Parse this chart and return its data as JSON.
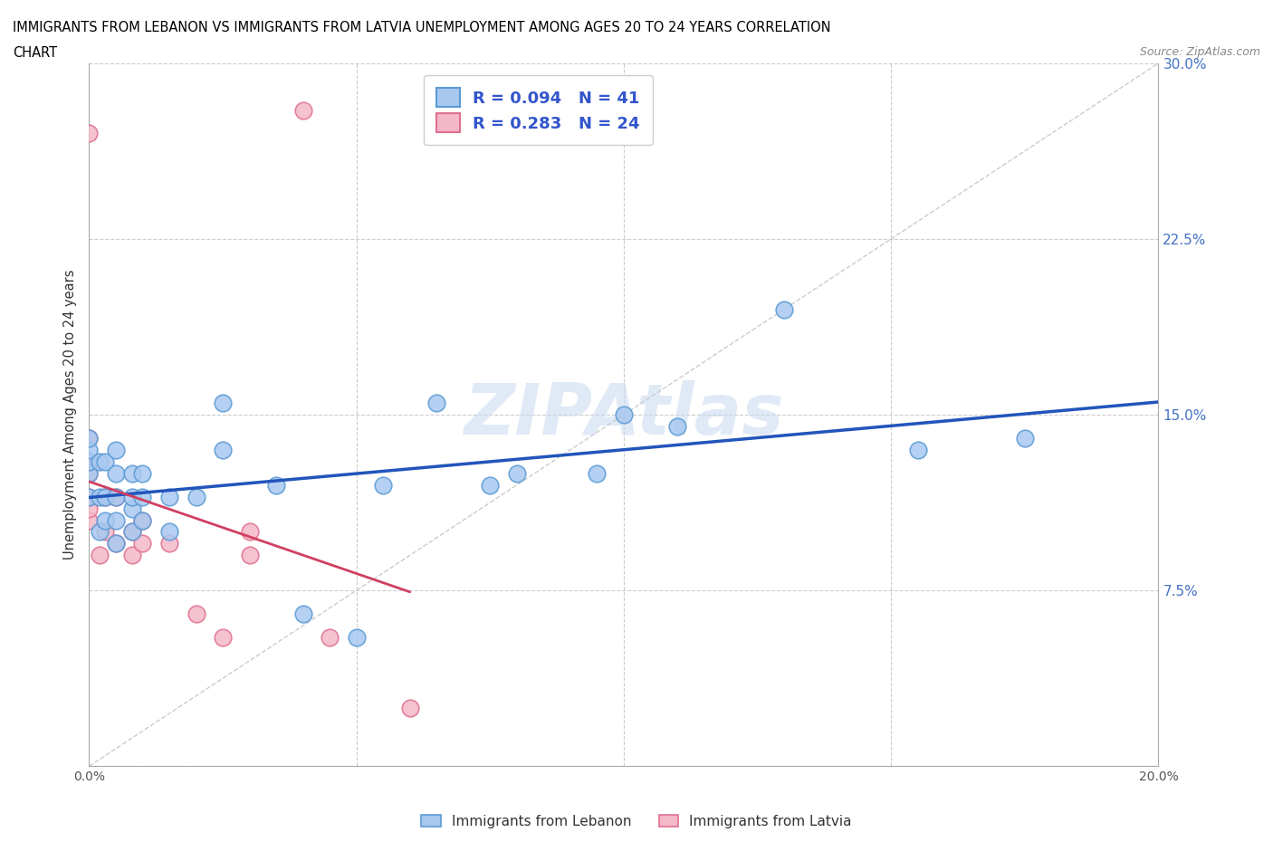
{
  "title_line1": "IMMIGRANTS FROM LEBANON VS IMMIGRANTS FROM LATVIA UNEMPLOYMENT AMONG AGES 20 TO 24 YEARS CORRELATION",
  "title_line2": "CHART",
  "source": "Source: ZipAtlas.com",
  "ylabel": "Unemployment Among Ages 20 to 24 years",
  "xlim": [
    0.0,
    0.2
  ],
  "ylim": [
    0.0,
    0.3
  ],
  "xticks": [
    0.0,
    0.05,
    0.1,
    0.15,
    0.2
  ],
  "yticks": [
    0.0,
    0.075,
    0.15,
    0.225,
    0.3
  ],
  "lebanon_color": "#a8c8f0",
  "latvia_color": "#f4b8c8",
  "lebanon_edge": "#5b9bd5",
  "latvia_edge": "#e07090",
  "lebanon_line_color": "#2255bb",
  "latvia_line_color": "#d04060",
  "lebanon_x": [
    0.0,
    0.0,
    0.0,
    0.0,
    0.0,
    0.002,
    0.002,
    0.002,
    0.003,
    0.003,
    0.003,
    0.005,
    0.005,
    0.005,
    0.005,
    0.005,
    0.008,
    0.008,
    0.008,
    0.008,
    0.01,
    0.01,
    0.01,
    0.015,
    0.015,
    0.02,
    0.025,
    0.025,
    0.035,
    0.04,
    0.05,
    0.055,
    0.065,
    0.075,
    0.08,
    0.095,
    0.1,
    0.11,
    0.13,
    0.155,
    0.175
  ],
  "lebanon_y": [
    0.115,
    0.125,
    0.13,
    0.135,
    0.14,
    0.1,
    0.115,
    0.13,
    0.105,
    0.115,
    0.13,
    0.095,
    0.105,
    0.115,
    0.125,
    0.135,
    0.1,
    0.11,
    0.115,
    0.125,
    0.105,
    0.115,
    0.125,
    0.1,
    0.115,
    0.115,
    0.135,
    0.155,
    0.12,
    0.065,
    0.055,
    0.12,
    0.155,
    0.12,
    0.125,
    0.125,
    0.15,
    0.145,
    0.195,
    0.135,
    0.14
  ],
  "latvia_x": [
    0.0,
    0.0,
    0.0,
    0.0,
    0.0,
    0.0,
    0.0,
    0.002,
    0.003,
    0.003,
    0.005,
    0.005,
    0.008,
    0.008,
    0.01,
    0.01,
    0.015,
    0.02,
    0.025,
    0.03,
    0.03,
    0.04,
    0.045,
    0.06
  ],
  "latvia_y": [
    0.105,
    0.11,
    0.115,
    0.125,
    0.13,
    0.14,
    0.27,
    0.09,
    0.1,
    0.115,
    0.095,
    0.115,
    0.09,
    0.1,
    0.095,
    0.105,
    0.095,
    0.065,
    0.055,
    0.09,
    0.1,
    0.28,
    0.055,
    0.025
  ]
}
